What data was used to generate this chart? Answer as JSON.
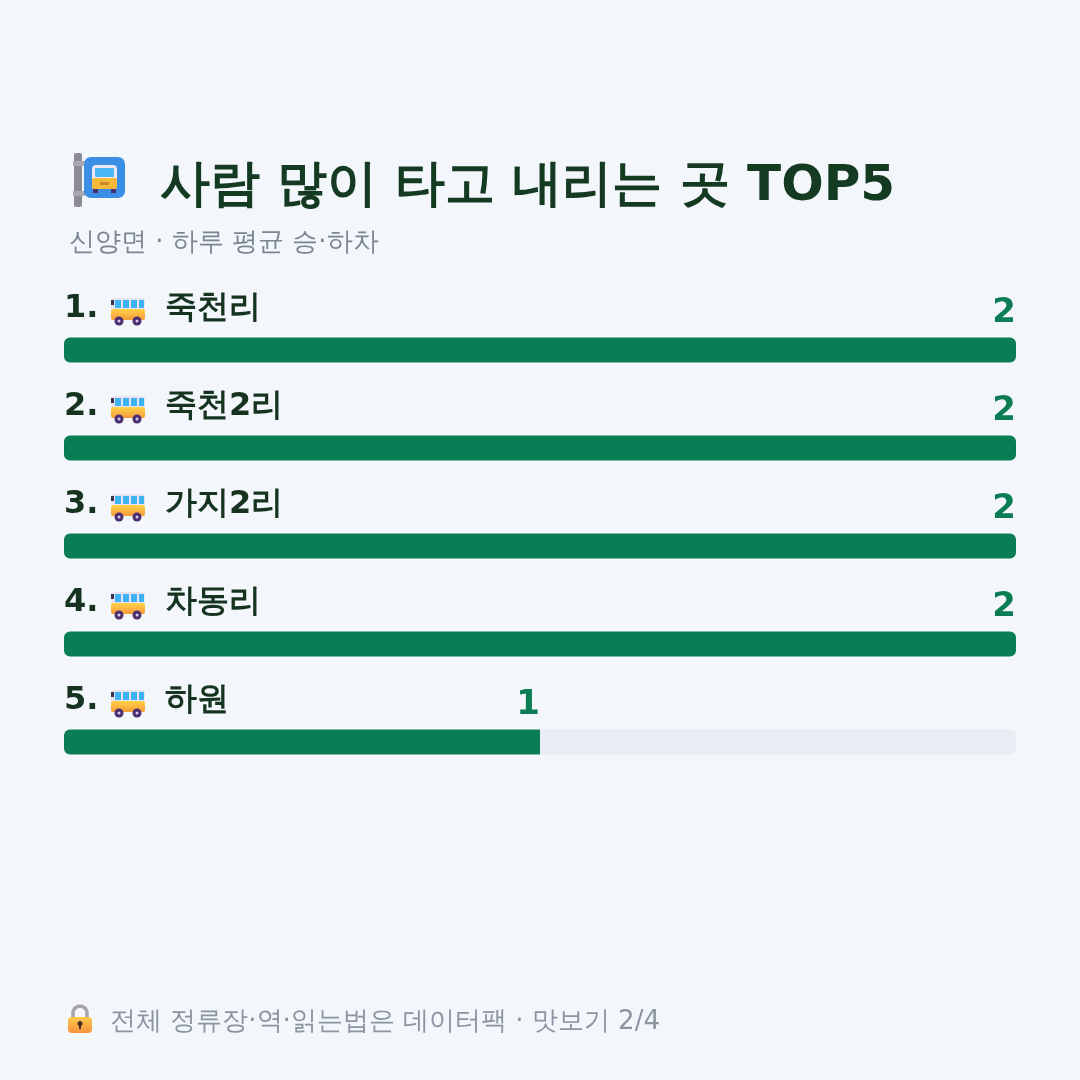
{
  "chart_data": {
    "type": "bar",
    "orientation": "horizontal",
    "stacked": true,
    "title": "사람 많이 타고 내리는 곳 TOP5",
    "subtitle": "신양면 · 하루 평균 승·하차",
    "categories": [
      "1. 죽천리",
      "2. 죽천2리",
      "3. 가지2리",
      "4. 차동리",
      "5. 하원"
    ],
    "series": [
      {
        "color": "#0a7d55",
        "values": [
          2,
          2,
          2,
          2,
          1
        ],
        "value_labels": [
          "2",
          "2",
          "2",
          "2",
          "1"
        ]
      },
      {
        "color": "#e8ecf3",
        "values": [
          null,
          null,
          null,
          null,
          1
        ]
      }
    ],
    "tick_labels": "y",
    "annotations": [
      "전체 정류장·역·읽는법은 데이터팩 · 맛보기 2/4"
    ]
  }
}
